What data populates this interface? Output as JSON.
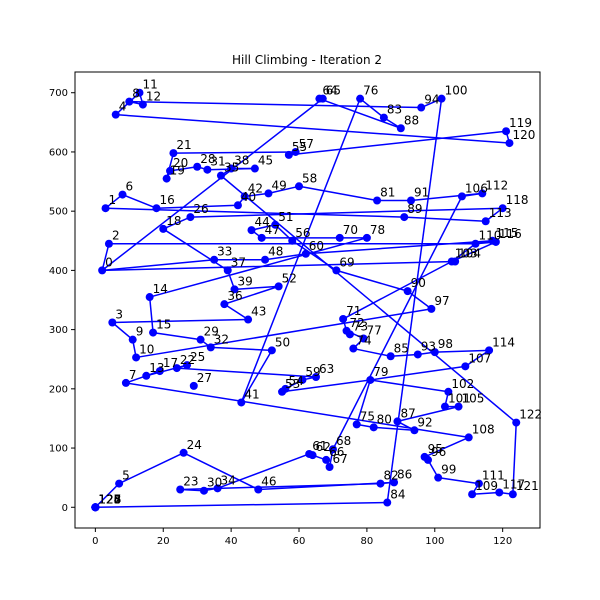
{
  "chart_data": {
    "type": "line",
    "title": "Hill Climbing - Iteration 2",
    "xlabel": "",
    "ylabel": "",
    "xlim": [
      -6,
      131
    ],
    "ylim": [
      -35,
      735
    ],
    "xticks": [
      0,
      20,
      40,
      60,
      80,
      100,
      120
    ],
    "yticks": [
      0,
      100,
      200,
      300,
      400,
      500,
      600,
      700
    ],
    "grid": false,
    "legend": "none",
    "colors": {
      "route": "#0000ff",
      "point": "#0000ff"
    },
    "points": [
      {
        "id": 0,
        "x": 2,
        "y": 400
      },
      {
        "id": 1,
        "x": 3,
        "y": 505
      },
      {
        "id": 2,
        "x": 4,
        "y": 445
      },
      {
        "id": 3,
        "x": 5,
        "y": 312
      },
      {
        "id": 4,
        "x": 6,
        "y": 663
      },
      {
        "id": 5,
        "x": 7,
        "y": 40
      },
      {
        "id": 6,
        "x": 8,
        "y": 528
      },
      {
        "id": 7,
        "x": 9,
        "y": 210
      },
      {
        "id": 8,
        "x": 10,
        "y": 685
      },
      {
        "id": 9,
        "x": 11,
        "y": 283
      },
      {
        "id": 10,
        "x": 12,
        "y": 253
      },
      {
        "id": 11,
        "x": 13,
        "y": 700
      },
      {
        "id": 12,
        "x": 14,
        "y": 680
      },
      {
        "id": 13,
        "x": 15,
        "y": 222
      },
      {
        "id": 14,
        "x": 16,
        "y": 355
      },
      {
        "id": 15,
        "x": 17,
        "y": 295
      },
      {
        "id": 16,
        "x": 18,
        "y": 505
      },
      {
        "id": 17,
        "x": 19,
        "y": 230
      },
      {
        "id": 18,
        "x": 20,
        "y": 470
      },
      {
        "id": 19,
        "x": 21,
        "y": 555
      },
      {
        "id": 20,
        "x": 22,
        "y": 568
      },
      {
        "id": 21,
        "x": 23,
        "y": 598
      },
      {
        "id": 22,
        "x": 24,
        "y": 235
      },
      {
        "id": 23,
        "x": 25,
        "y": 30
      },
      {
        "id": 24,
        "x": 26,
        "y": 92
      },
      {
        "id": 25,
        "x": 27,
        "y": 240
      },
      {
        "id": 26,
        "x": 28,
        "y": 490
      },
      {
        "id": 27,
        "x": 29,
        "y": 205
      },
      {
        "id": 28,
        "x": 30,
        "y": 575
      },
      {
        "id": 29,
        "x": 31,
        "y": 283
      },
      {
        "id": 30,
        "x": 32,
        "y": 28
      },
      {
        "id": 31,
        "x": 33,
        "y": 570
      },
      {
        "id": 32,
        "x": 34,
        "y": 270
      },
      {
        "id": 33,
        "x": 35,
        "y": 418
      },
      {
        "id": 34,
        "x": 36,
        "y": 32
      },
      {
        "id": 35,
        "x": 37,
        "y": 560
      },
      {
        "id": 36,
        "x": 38,
        "y": 343
      },
      {
        "id": 37,
        "x": 39,
        "y": 400
      },
      {
        "id": 38,
        "x": 40,
        "y": 572
      },
      {
        "id": 39,
        "x": 41,
        "y": 368
      },
      {
        "id": 40,
        "x": 42,
        "y": 510
      },
      {
        "id": 41,
        "x": 43,
        "y": 177
      },
      {
        "id": 42,
        "x": 44,
        "y": 525
      },
      {
        "id": 43,
        "x": 45,
        "y": 317
      },
      {
        "id": 44,
        "x": 46,
        "y": 468
      },
      {
        "id": 45,
        "x": 47,
        "y": 572
      },
      {
        "id": 46,
        "x": 48,
        "y": 30
      },
      {
        "id": 47,
        "x": 49,
        "y": 455
      },
      {
        "id": 48,
        "x": 50,
        "y": 418
      },
      {
        "id": 49,
        "x": 51,
        "y": 530
      },
      {
        "id": 50,
        "x": 52,
        "y": 265
      },
      {
        "id": 51,
        "x": 53,
        "y": 477
      },
      {
        "id": 52,
        "x": 54,
        "y": 373
      },
      {
        "id": 53,
        "x": 55,
        "y": 195
      },
      {
        "id": 54,
        "x": 56,
        "y": 200
      },
      {
        "id": 55,
        "x": 57,
        "y": 595
      },
      {
        "id": 56,
        "x": 58,
        "y": 450
      },
      {
        "id": 57,
        "x": 59,
        "y": 600
      },
      {
        "id": 58,
        "x": 60,
        "y": 542
      },
      {
        "id": 59,
        "x": 61,
        "y": 215
      },
      {
        "id": 60,
        "x": 62,
        "y": 428
      },
      {
        "id": 61,
        "x": 63,
        "y": 90
      },
      {
        "id": 62,
        "x": 64,
        "y": 88
      },
      {
        "id": 63,
        "x": 65,
        "y": 220
      },
      {
        "id": 64,
        "x": 66,
        "y": 690
      },
      {
        "id": 65,
        "x": 67,
        "y": 690
      },
      {
        "id": 66,
        "x": 68,
        "y": 80
      },
      {
        "id": 67,
        "x": 69,
        "y": 68
      },
      {
        "id": 68,
        "x": 70,
        "y": 98
      },
      {
        "id": 69,
        "x": 71,
        "y": 400
      },
      {
        "id": 70,
        "x": 72,
        "y": 455
      },
      {
        "id": 71,
        "x": 73,
        "y": 318
      },
      {
        "id": 72,
        "x": 74,
        "y": 298
      },
      {
        "id": 73,
        "x": 75,
        "y": 292
      },
      {
        "id": 74,
        "x": 76,
        "y": 268
      },
      {
        "id": 75,
        "x": 77,
        "y": 140
      },
      {
        "id": 76,
        "x": 78,
        "y": 690
      },
      {
        "id": 77,
        "x": 79,
        "y": 285
      },
      {
        "id": 78,
        "x": 80,
        "y": 455
      },
      {
        "id": 79,
        "x": 81,
        "y": 215
      },
      {
        "id": 80,
        "x": 82,
        "y": 135
      },
      {
        "id": 81,
        "x": 83,
        "y": 518
      },
      {
        "id": 82,
        "x": 84,
        "y": 40
      },
      {
        "id": 83,
        "x": 85,
        "y": 658
      },
      {
        "id": 84,
        "x": 86,
        "y": 8
      },
      {
        "id": 85,
        "x": 87,
        "y": 255
      },
      {
        "id": 86,
        "x": 88,
        "y": 42
      },
      {
        "id": 87,
        "x": 89,
        "y": 145
      },
      {
        "id": 88,
        "x": 90,
        "y": 640
      },
      {
        "id": 89,
        "x": 91,
        "y": 490
      },
      {
        "id": 90,
        "x": 92,
        "y": 365
      },
      {
        "id": 91,
        "x": 93,
        "y": 518
      },
      {
        "id": 92,
        "x": 94,
        "y": 130
      },
      {
        "id": 93,
        "x": 95,
        "y": 258
      },
      {
        "id": 94,
        "x": 96,
        "y": 675
      },
      {
        "id": 95,
        "x": 97,
        "y": 85
      },
      {
        "id": 96,
        "x": 98,
        "y": 80
      },
      {
        "id": 97,
        "x": 99,
        "y": 335
      },
      {
        "id": 98,
        "x": 100,
        "y": 262
      },
      {
        "id": 99,
        "x": 101,
        "y": 50
      },
      {
        "id": 100,
        "x": 102,
        "y": 690
      },
      {
        "id": 101,
        "x": 103,
        "y": 170
      },
      {
        "id": 102,
        "x": 104,
        "y": 195
      },
      {
        "id": 103,
        "x": 105,
        "y": 415
      },
      {
        "id": 104,
        "x": 106,
        "y": 415
      },
      {
        "id": 105,
        "x": 107,
        "y": 170
      },
      {
        "id": 106,
        "x": 108,
        "y": 525
      },
      {
        "id": 107,
        "x": 109,
        "y": 238
      },
      {
        "id": 108,
        "x": 110,
        "y": 118
      },
      {
        "id": 109,
        "x": 111,
        "y": 22
      },
      {
        "id": 110,
        "x": 112,
        "y": 445
      },
      {
        "id": 111,
        "x": 113,
        "y": 40
      },
      {
        "id": 112,
        "x": 114,
        "y": 530
      },
      {
        "id": 113,
        "x": 115,
        "y": 483
      },
      {
        "id": 114,
        "x": 116,
        "y": 265
      },
      {
        "id": 115,
        "x": 117,
        "y": 450
      },
      {
        "id": 116,
        "x": 118,
        "y": 448
      },
      {
        "id": 117,
        "x": 119,
        "y": 25
      },
      {
        "id": 118,
        "x": 120,
        "y": 505
      },
      {
        "id": 119,
        "x": 121,
        "y": 635
      },
      {
        "id": 120,
        "x": 122,
        "y": 615
      },
      {
        "id": 121,
        "x": 123,
        "y": 22
      },
      {
        "id": 122,
        "x": 124,
        "y": 143
      },
      {
        "id": 123,
        "x": 0,
        "y": 0
      },
      {
        "id": 124,
        "x": 0,
        "y": 0
      },
      {
        "id": 125,
        "x": 0,
        "y": 0
      },
      {
        "id": 126,
        "x": 0,
        "y": 0
      },
      {
        "id": 127,
        "x": 0,
        "y": 0
      },
      {
        "id": 128,
        "x": 0,
        "y": 0
      }
    ],
    "route": [
      0,
      104,
      103,
      116,
      110,
      115,
      60,
      48,
      33,
      0,
      2,
      110,
      103,
      71,
      72,
      77,
      74,
      85,
      93,
      98,
      114,
      107,
      79,
      75,
      80,
      92,
      87,
      105,
      101,
      102,
      79,
      53,
      54,
      59,
      63,
      22,
      25,
      13,
      17,
      7,
      108,
      95,
      96,
      99,
      111,
      109,
      117,
      121,
      122,
      35,
      38,
      45,
      31,
      28,
      20,
      19,
      21,
      57,
      55,
      119,
      120,
      4,
      11,
      12,
      8,
      94,
      100,
      84,
      123,
      124,
      125,
      126,
      127,
      128,
      5,
      24,
      46,
      86,
      82,
      23,
      30,
      34,
      61,
      62,
      66,
      67,
      68,
      106,
      112,
      91,
      81,
      58,
      49,
      42,
      40,
      16,
      6,
      1,
      89,
      113,
      118,
      26,
      18,
      37,
      39,
      52,
      36,
      43,
      3,
      9,
      10,
      97,
      90,
      69,
      56,
      51,
      44,
      47,
      70,
      78,
      14,
      15,
      29,
      32,
      50,
      41,
      76,
      83,
      88,
      64,
      65,
      0
    ]
  }
}
